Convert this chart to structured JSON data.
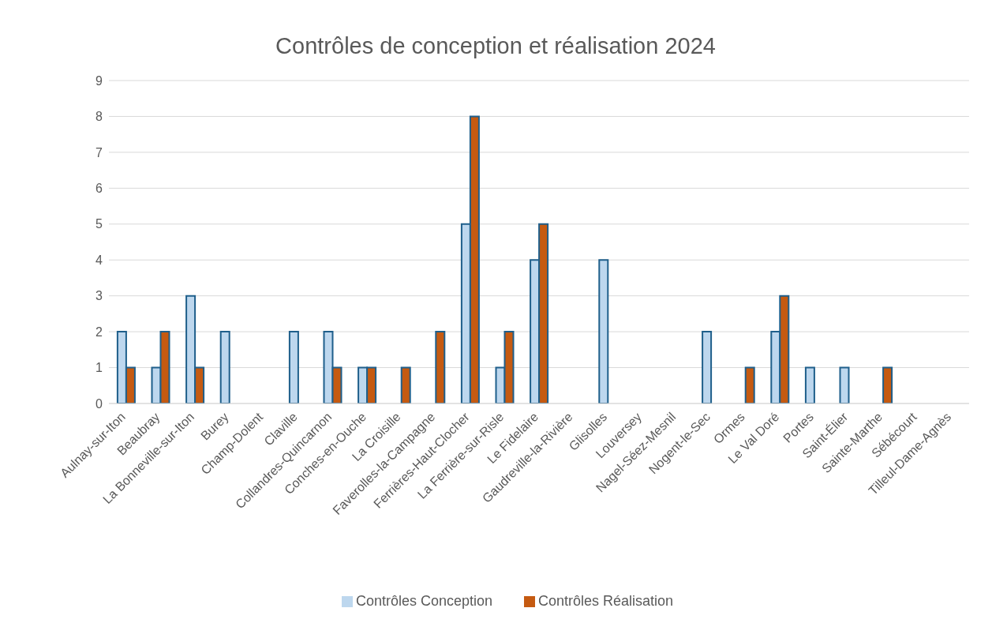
{
  "chart_data": {
    "type": "bar",
    "title": "Contrôles de conception et réalisation 2024",
    "categories": [
      "Aulnay-sur-Iton",
      "Beaubray",
      "La Bonneville-sur-Iton",
      "Burey",
      "Champ-Dolent",
      "Claville",
      "Collandres-Quincarnon",
      "Conches-en-Ouche",
      "La Croisille",
      "Faverolles-la-Campagne",
      "Ferrières-Haut-Clocher",
      "La Ferrière-sur-Risle",
      "Le Fidelaire",
      "Gaudreville-la-Rivière",
      "Glisolles",
      "Louversey",
      "Nagel-Séez-Mesnil",
      "Nogent-le-Sec",
      "Ormes",
      "Le Val Doré",
      "Portes",
      "Saint-Élier",
      "Sainte-Marthe",
      "Sébécourt",
      "Tilleul-Dame-Agnès"
    ],
    "series": [
      {
        "name": "Contrôles Conception",
        "color": "#bdd7ee",
        "values": [
          2,
          1,
          3,
          2,
          0,
          2,
          2,
          1,
          0,
          0,
          5,
          1,
          4,
          0,
          4,
          0,
          0,
          2,
          0,
          2,
          1,
          1,
          0,
          0,
          0
        ]
      },
      {
        "name": "Contrôles Réalisation",
        "color": "#c55a11",
        "values": [
          1,
          2,
          1,
          0,
          0,
          0,
          1,
          1,
          1,
          2,
          8,
          2,
          5,
          0,
          0,
          0,
          0,
          0,
          1,
          3,
          0,
          0,
          1,
          0,
          0
        ]
      }
    ],
    "ylim": [
      0,
      9
    ],
    "yticks": [
      0,
      1,
      2,
      3,
      4,
      5,
      6,
      7,
      8,
      9
    ],
    "grid": "y",
    "legend": "bottom"
  }
}
